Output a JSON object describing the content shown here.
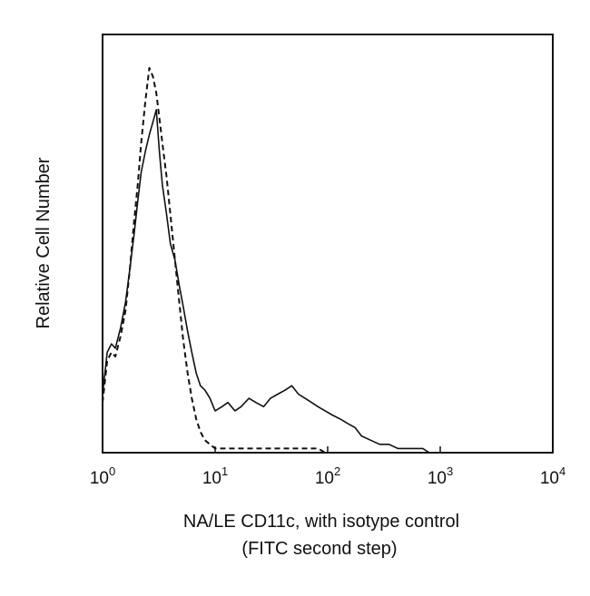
{
  "chart_data": {
    "type": "line",
    "title": "",
    "xlabel": "NA/LE CD11c, with isotype control",
    "xlabel_line2": "(FITC second step)",
    "ylabel": "Relative Cell Number",
    "x_scale": "log",
    "xlim": [
      1,
      10000
    ],
    "ylim": [
      0,
      100
    ],
    "grid": false,
    "legend": "none",
    "x_ticks": [
      {
        "value": 1,
        "base": "10",
        "exp": "0"
      },
      {
        "value": 10,
        "base": "10",
        "exp": "1"
      },
      {
        "value": 100,
        "base": "10",
        "exp": "2"
      },
      {
        "value": 1000,
        "base": "10",
        "exp": "3"
      },
      {
        "value": 10000,
        "base": "10",
        "exp": "4"
      }
    ],
    "series": [
      {
        "style": "solid",
        "color": "#111111",
        "x": [
          1.0,
          1.1,
          1.2,
          1.3,
          1.45,
          1.6,
          1.75,
          1.9,
          2.05,
          2.2,
          2.4,
          2.6,
          2.8,
          3.0,
          3.2,
          3.4,
          3.7,
          4.0,
          4.4,
          4.8,
          5.2,
          5.7,
          6.2,
          6.8,
          7.4,
          8.1,
          9.0,
          10.0,
          11.5,
          13.0,
          15.0,
          17.0,
          20.0,
          23.0,
          27.0,
          31.0,
          36.0,
          42.0,
          48.0,
          55.0,
          63.0,
          72.0,
          82.0,
          95.0,
          110.0,
          130.0,
          150.0,
          175.0,
          200.0,
          240.0,
          290.0,
          350.0,
          420.0,
          500.0,
          600.0,
          700.0,
          800.0,
          900.0,
          1000.0
        ],
        "y": [
          14,
          24,
          26,
          25,
          30,
          36,
          44,
          52,
          60,
          67,
          72,
          76,
          79,
          82,
          72,
          64,
          57,
          50,
          46,
          40,
          35,
          29,
          24,
          19,
          16,
          15,
          13,
          10,
          11,
          12,
          10,
          11,
          13,
          12,
          11,
          13,
          14,
          15,
          16,
          14,
          13,
          12,
          11,
          10,
          9,
          8,
          7,
          6,
          4,
          3,
          2,
          2,
          1,
          1,
          1,
          1,
          0,
          0,
          0
        ]
      },
      {
        "style": "dashed",
        "color": "#111111",
        "x": [
          1.0,
          1.1,
          1.2,
          1.3,
          1.45,
          1.6,
          1.75,
          1.9,
          2.05,
          2.2,
          2.4,
          2.6,
          2.8,
          3.0,
          3.2,
          3.4,
          3.7,
          4.0,
          4.4,
          4.8,
          5.2,
          5.7,
          6.2,
          6.8,
          7.4,
          8.1,
          9.0,
          10.0,
          11.5,
          13.0,
          15.0,
          17.0,
          20.0,
          23.0,
          27.0,
          31.0,
          36.0,
          42.0,
          48.0,
          55.0,
          63.0,
          72.0,
          82.0,
          95.0,
          110.0,
          130.0,
          150.0,
          175.0,
          200.0,
          240.0,
          290.0,
          350.0,
          420.0,
          500.0,
          600.0,
          700.0,
          800.0,
          900.0,
          1000.0
        ],
        "y": [
          12,
          22,
          24,
          23,
          28,
          34,
          44,
          55,
          64,
          74,
          84,
          92,
          90,
          86,
          80,
          74,
          66,
          57,
          46,
          36,
          27,
          19,
          13,
          8,
          5,
          3,
          2,
          1,
          1,
          1,
          1,
          1,
          1,
          1,
          1,
          1,
          1,
          1,
          1,
          1,
          1,
          1,
          1,
          0,
          0,
          0,
          0,
          0,
          0,
          0,
          0,
          0,
          0,
          0,
          0,
          0,
          0,
          0,
          0
        ]
      }
    ]
  }
}
